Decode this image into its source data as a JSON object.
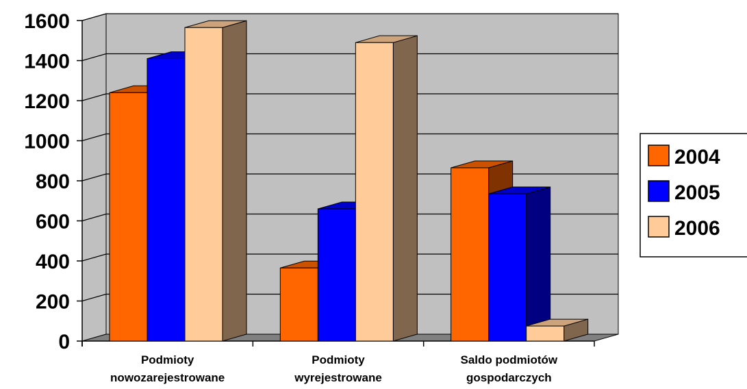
{
  "chart_data": {
    "type": "bar",
    "three_d": true,
    "categories": [
      [
        "Podmioty",
        "nowozarejestrowane"
      ],
      [
        "Podmioty",
        "wyrejestrowane"
      ],
      [
        "Saldo podmiotów",
        "gospodarczych"
      ]
    ],
    "series": [
      {
        "name": "2004",
        "color": "#ff6600",
        "values": [
          1240,
          365,
          865
        ]
      },
      {
        "name": "2005",
        "color": "#0000ff",
        "values": [
          1410,
          660,
          735
        ]
      },
      {
        "name": "2006",
        "color": "#ffcc99",
        "values": [
          1565,
          1490,
          75
        ]
      }
    ],
    "ylim": [
      0,
      1600
    ],
    "yticks": [
      0,
      200,
      400,
      600,
      800,
      1000,
      1200,
      1400,
      1600
    ],
    "grid": true,
    "legend_position": "right",
    "wall_color": "#c0c0c0",
    "floor_color": "#808080"
  }
}
